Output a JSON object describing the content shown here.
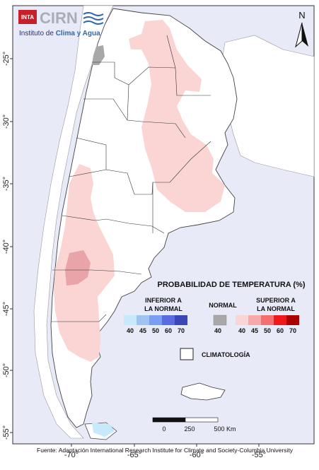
{
  "logo": {
    "inta": "INTA",
    "cirn": "CIRN",
    "subtitle_prefix": "Instituto de ",
    "subtitle_highlight": "Clima y Agua"
  },
  "north_label": "N",
  "axis": {
    "lat_ticks": [
      "-25°",
      "-30°",
      "-35°",
      "-40°",
      "-45°",
      "-50°",
      "-55°"
    ],
    "lon_ticks": [
      "-70°",
      "-65°",
      "-60°",
      "-55°"
    ]
  },
  "legend": {
    "title": "PROBABILIDAD DE TEMPERATURA (%)",
    "below": {
      "line1": "INFERIOR A",
      "line2": "LA NORMAL",
      "values": [
        "40",
        "45",
        "50",
        "60",
        "70"
      ],
      "colors": [
        "#c6e9fb",
        "#9fc4f3",
        "#7b9ff0",
        "#5a6de0",
        "#3a48b5"
      ]
    },
    "normal": {
      "label": "NORMAL",
      "value": "40",
      "color": "#a8a8a8"
    },
    "above": {
      "line1": "SUPERIOR A",
      "line2": "LA NORMAL",
      "values": [
        "40",
        "45",
        "50",
        "60",
        "70"
      ],
      "colors": [
        "#fbd4d4",
        "#f7a9a9",
        "#f56f6f",
        "#f01818",
        "#a80000"
      ]
    },
    "climatology": "CLIMATOLOGÍA"
  },
  "scale_bar": {
    "labels": [
      "0",
      "250",
      "500 Km"
    ]
  },
  "source": "Fuente: Adaptación International Research Institute for Climate and Society-Columbia University",
  "colors": {
    "ocean": "#e8eaf8",
    "land": "#ffffff",
    "above_40": "#fbd4d4",
    "above_45": "#e8a4a8",
    "normal": "#a8a8a8"
  }
}
